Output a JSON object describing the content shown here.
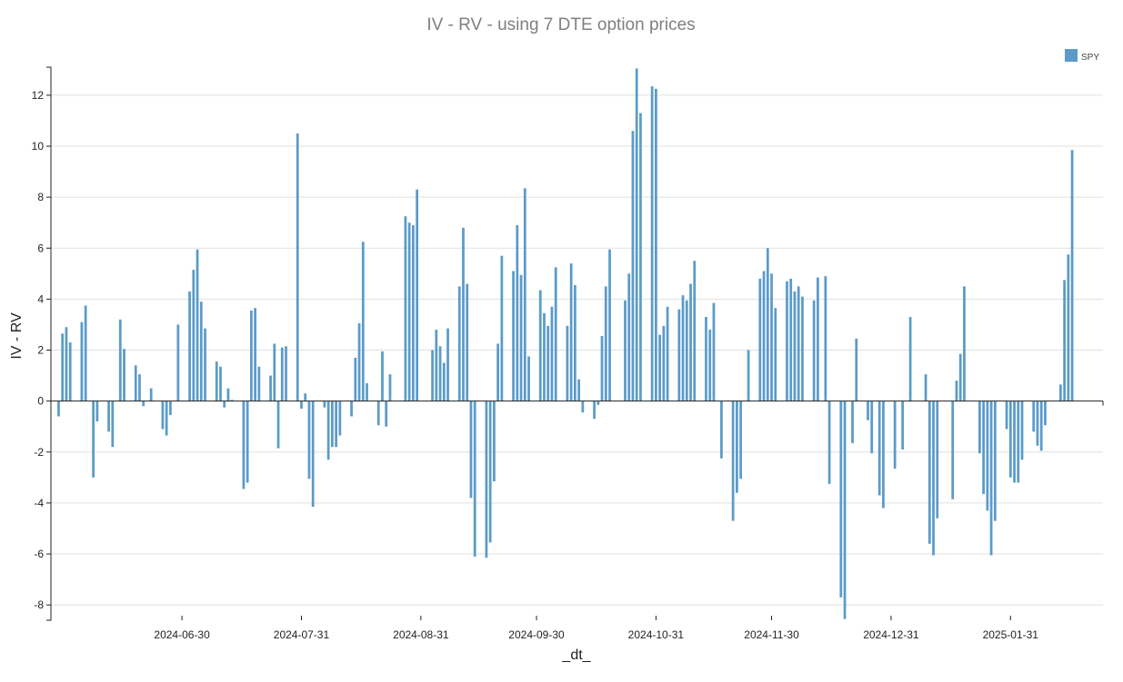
{
  "chart_data": {
    "type": "bar",
    "title": "IV - RV  - using 7 DTE option prices",
    "xlabel": "_dt_",
    "ylabel": "IV - RV",
    "ylim": [
      -8.6,
      13.1
    ],
    "xlim": [
      "2024-05-27",
      "2025-02-24"
    ],
    "y_ticks": [
      12,
      10,
      8,
      6,
      4,
      2,
      0,
      -2,
      -4,
      -6,
      -8
    ],
    "x_ticks": [
      "2024-06-30",
      "2024-07-31",
      "2024-08-31",
      "2024-09-30",
      "2024-10-31",
      "2024-11-30",
      "2024-12-31",
      "2025-01-31"
    ],
    "grid": true,
    "legend_position": "top-right",
    "color": "#5b9bc9",
    "series": [
      {
        "name": "SPY",
        "values": [
          {
            "x": "2024-05-29",
            "y": -0.6
          },
          {
            "x": "2024-05-30",
            "y": 2.65
          },
          {
            "x": "2024-05-31",
            "y": 2.9
          },
          {
            "x": "2024-06-01",
            "y": 2.3
          },
          {
            "x": "2024-06-04",
            "y": 3.1
          },
          {
            "x": "2024-06-05",
            "y": 3.75
          },
          {
            "x": "2024-06-07",
            "y": -3.0
          },
          {
            "x": "2024-06-08",
            "y": -0.8
          },
          {
            "x": "2024-06-11",
            "y": -1.2
          },
          {
            "x": "2024-06-12",
            "y": -1.8
          },
          {
            "x": "2024-06-14",
            "y": 3.2
          },
          {
            "x": "2024-06-15",
            "y": 2.05
          },
          {
            "x": "2024-06-18",
            "y": 1.4
          },
          {
            "x": "2024-06-19",
            "y": 1.05
          },
          {
            "x": "2024-06-20",
            "y": -0.2
          },
          {
            "x": "2024-06-22",
            "y": 0.5
          },
          {
            "x": "2024-06-25",
            "y": -1.1
          },
          {
            "x": "2024-06-26",
            "y": -1.35
          },
          {
            "x": "2024-06-27",
            "y": -0.55
          },
          {
            "x": "2024-06-29",
            "y": 3.0
          },
          {
            "x": "2024-07-02",
            "y": 4.3
          },
          {
            "x": "2024-07-03",
            "y": 5.15
          },
          {
            "x": "2024-07-04",
            "y": 5.95
          },
          {
            "x": "2024-07-05",
            "y": 3.9
          },
          {
            "x": "2024-07-06",
            "y": 2.85
          },
          {
            "x": "2024-07-09",
            "y": 1.55
          },
          {
            "x": "2024-07-10",
            "y": 1.35
          },
          {
            "x": "2024-07-11",
            "y": -0.25
          },
          {
            "x": "2024-07-12",
            "y": 0.5
          },
          {
            "x": "2024-07-13",
            "y": 0.05
          },
          {
            "x": "2024-07-16",
            "y": -3.45
          },
          {
            "x": "2024-07-17",
            "y": -3.2
          },
          {
            "x": "2024-07-18",
            "y": 3.55
          },
          {
            "x": "2024-07-19",
            "y": 3.65
          },
          {
            "x": "2024-07-20",
            "y": 1.35
          },
          {
            "x": "2024-07-23",
            "y": 1.0
          },
          {
            "x": "2024-07-24",
            "y": 2.25
          },
          {
            "x": "2024-07-25",
            "y": -1.85
          },
          {
            "x": "2024-07-26",
            "y": 2.1
          },
          {
            "x": "2024-07-27",
            "y": 2.15
          },
          {
            "x": "2024-07-30",
            "y": 10.5
          },
          {
            "x": "2024-07-31",
            "y": -0.3
          },
          {
            "x": "2024-08-01",
            "y": 0.3
          },
          {
            "x": "2024-08-02",
            "y": -3.05
          },
          {
            "x": "2024-08-03",
            "y": -4.15
          },
          {
            "x": "2024-08-06",
            "y": -0.25
          },
          {
            "x": "2024-08-07",
            "y": -2.3
          },
          {
            "x": "2024-08-08",
            "y": -1.8
          },
          {
            "x": "2024-08-09",
            "y": -1.8
          },
          {
            "x": "2024-08-10",
            "y": -1.35
          },
          {
            "x": "2024-08-13",
            "y": -0.6
          },
          {
            "x": "2024-08-14",
            "y": 1.7
          },
          {
            "x": "2024-08-15",
            "y": 3.05
          },
          {
            "x": "2024-08-16",
            "y": 6.25
          },
          {
            "x": "2024-08-17",
            "y": 0.7
          },
          {
            "x": "2024-08-20",
            "y": -0.95
          },
          {
            "x": "2024-08-21",
            "y": 1.95
          },
          {
            "x": "2024-08-22",
            "y": -1.0
          },
          {
            "x": "2024-08-23",
            "y": 1.05
          },
          {
            "x": "2024-08-27",
            "y": 7.25
          },
          {
            "x": "2024-08-28",
            "y": 7.0
          },
          {
            "x": "2024-08-29",
            "y": 6.9
          },
          {
            "x": "2024-08-30",
            "y": 8.3
          },
          {
            "x": "2024-09-03",
            "y": 2.0
          },
          {
            "x": "2024-09-04",
            "y": 2.8
          },
          {
            "x": "2024-09-05",
            "y": 2.15
          },
          {
            "x": "2024-09-06",
            "y": 1.5
          },
          {
            "x": "2024-09-07",
            "y": 2.85
          },
          {
            "x": "2024-09-10",
            "y": 4.5
          },
          {
            "x": "2024-09-11",
            "y": 6.8
          },
          {
            "x": "2024-09-12",
            "y": 4.6
          },
          {
            "x": "2024-09-13",
            "y": -3.8
          },
          {
            "x": "2024-09-14",
            "y": -6.1
          },
          {
            "x": "2024-09-17",
            "y": -6.15
          },
          {
            "x": "2024-09-18",
            "y": -5.55
          },
          {
            "x": "2024-09-19",
            "y": -3.15
          },
          {
            "x": "2024-09-20",
            "y": 2.25
          },
          {
            "x": "2024-09-21",
            "y": 5.7
          },
          {
            "x": "2024-09-24",
            "y": 5.1
          },
          {
            "x": "2024-09-25",
            "y": 6.9
          },
          {
            "x": "2024-09-26",
            "y": 4.95
          },
          {
            "x": "2024-09-27",
            "y": 8.35
          },
          {
            "x": "2024-09-28",
            "y": 1.75
          },
          {
            "x": "2024-10-01",
            "y": 4.35
          },
          {
            "x": "2024-10-02",
            "y": 3.45
          },
          {
            "x": "2024-10-03",
            "y": 2.95
          },
          {
            "x": "2024-10-04",
            "y": 3.7
          },
          {
            "x": "2024-10-05",
            "y": 5.25
          },
          {
            "x": "2024-10-08",
            "y": 2.95
          },
          {
            "x": "2024-10-09",
            "y": 5.4
          },
          {
            "x": "2024-10-10",
            "y": 4.55
          },
          {
            "x": "2024-10-11",
            "y": 0.85
          },
          {
            "x": "2024-10-12",
            "y": -0.45
          },
          {
            "x": "2024-10-15",
            "y": -0.7
          },
          {
            "x": "2024-10-16",
            "y": -0.15
          },
          {
            "x": "2024-10-17",
            "y": 2.55
          },
          {
            "x": "2024-10-18",
            "y": 4.5
          },
          {
            "x": "2024-10-19",
            "y": 5.95
          },
          {
            "x": "2024-10-23",
            "y": 3.95
          },
          {
            "x": "2024-10-24",
            "y": 5.0
          },
          {
            "x": "2024-10-25",
            "y": 10.6
          },
          {
            "x": "2024-10-26",
            "y": 13.05
          },
          {
            "x": "2024-10-27",
            "y": 11.3
          },
          {
            "x": "2024-10-30",
            "y": 12.35
          },
          {
            "x": "2024-10-31",
            "y": 12.25
          },
          {
            "x": "2024-11-01",
            "y": 2.6
          },
          {
            "x": "2024-11-02",
            "y": 2.95
          },
          {
            "x": "2024-11-03",
            "y": 3.7
          },
          {
            "x": "2024-11-06",
            "y": 3.6
          },
          {
            "x": "2024-11-07",
            "y": 4.15
          },
          {
            "x": "2024-11-08",
            "y": 3.95
          },
          {
            "x": "2024-11-09",
            "y": 4.6
          },
          {
            "x": "2024-11-10",
            "y": 5.5
          },
          {
            "x": "2024-11-13",
            "y": 3.3
          },
          {
            "x": "2024-11-14",
            "y": 2.8
          },
          {
            "x": "2024-11-15",
            "y": 3.85
          },
          {
            "x": "2024-11-17",
            "y": -2.25
          },
          {
            "x": "2024-11-20",
            "y": -4.7
          },
          {
            "x": "2024-11-21",
            "y": -3.6
          },
          {
            "x": "2024-11-22",
            "y": -3.05
          },
          {
            "x": "2024-11-24",
            "y": 2.0
          },
          {
            "x": "2024-11-27",
            "y": 4.8
          },
          {
            "x": "2024-11-28",
            "y": 5.1
          },
          {
            "x": "2024-11-29",
            "y": 6.0
          },
          {
            "x": "2024-11-30",
            "y": 5.0
          },
          {
            "x": "2024-12-01",
            "y": 3.65
          },
          {
            "x": "2024-12-04",
            "y": 4.7
          },
          {
            "x": "2024-12-05",
            "y": 4.8
          },
          {
            "x": "2024-12-06",
            "y": 4.3
          },
          {
            "x": "2024-12-07",
            "y": 4.5
          },
          {
            "x": "2024-12-08",
            "y": 4.1
          },
          {
            "x": "2024-12-11",
            "y": 3.95
          },
          {
            "x": "2024-12-12",
            "y": 4.85
          },
          {
            "x": "2024-12-14",
            "y": 4.9
          },
          {
            "x": "2024-12-15",
            "y": -3.25
          },
          {
            "x": "2024-12-18",
            "y": -7.7
          },
          {
            "x": "2024-12-19",
            "y": -8.55
          },
          {
            "x": "2024-12-21",
            "y": -1.65
          },
          {
            "x": "2024-12-22",
            "y": 2.45
          },
          {
            "x": "2024-12-25",
            "y": -0.75
          },
          {
            "x": "2024-12-26",
            "y": -2.05
          },
          {
            "x": "2024-12-28",
            "y": -3.7
          },
          {
            "x": "2024-12-29",
            "y": -4.2
          },
          {
            "x": "2025-01-01",
            "y": -2.65
          },
          {
            "x": "2025-01-03",
            "y": -1.9
          },
          {
            "x": "2025-01-05",
            "y": 3.3
          },
          {
            "x": "2025-01-09",
            "y": 1.05
          },
          {
            "x": "2025-01-10",
            "y": -5.6
          },
          {
            "x": "2025-01-11",
            "y": -6.05
          },
          {
            "x": "2025-01-12",
            "y": -4.6
          },
          {
            "x": "2025-01-16",
            "y": -3.85
          },
          {
            "x": "2025-01-17",
            "y": 0.8
          },
          {
            "x": "2025-01-18",
            "y": 1.85
          },
          {
            "x": "2025-01-19",
            "y": 4.5
          },
          {
            "x": "2025-01-23",
            "y": -2.05
          },
          {
            "x": "2025-01-24",
            "y": -3.65
          },
          {
            "x": "2025-01-25",
            "y": -4.3
          },
          {
            "x": "2025-01-26",
            "y": -6.05
          },
          {
            "x": "2025-01-27",
            "y": -4.7
          },
          {
            "x": "2025-01-30",
            "y": -1.1
          },
          {
            "x": "2025-01-31",
            "y": -3.0
          },
          {
            "x": "2025-02-01",
            "y": -3.2
          },
          {
            "x": "2025-02-02",
            "y": -3.2
          },
          {
            "x": "2025-02-03",
            "y": -2.3
          },
          {
            "x": "2025-02-06",
            "y": -1.2
          },
          {
            "x": "2025-02-07",
            "y": -1.75
          },
          {
            "x": "2025-02-08",
            "y": -1.95
          },
          {
            "x": "2025-02-09",
            "y": -0.95
          },
          {
            "x": "2025-02-13",
            "y": 0.65
          },
          {
            "x": "2025-02-14",
            "y": 4.75
          },
          {
            "x": "2025-02-15",
            "y": 5.75
          },
          {
            "x": "2025-02-16",
            "y": 9.85
          }
        ]
      }
    ]
  }
}
